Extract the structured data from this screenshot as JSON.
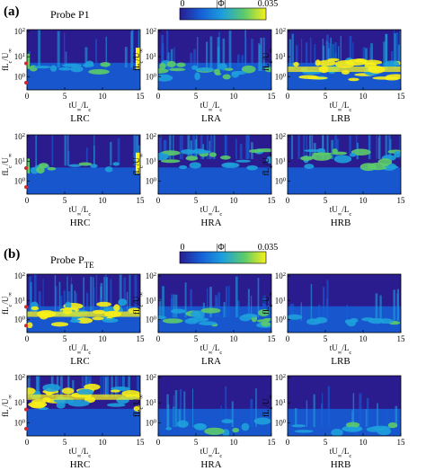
{
  "sections": [
    {
      "panel_label": "(a)",
      "probe_label": "Probe P1",
      "colorbar": {
        "min_label": "0",
        "title": "|Φ|",
        "max_label": "0.035"
      },
      "panels": [
        {
          "name": "LRC",
          "intensity": "low",
          "band_center": 0.4,
          "band_width": 0.18,
          "ends_bright": true,
          "marker": true
        },
        {
          "name": "LRA",
          "intensity": "med",
          "band_center": 0.3,
          "band_width": 0.25,
          "ends_bright": false,
          "marker": false
        },
        {
          "name": "LRB",
          "intensity": "high",
          "band_center": 0.35,
          "band_width": 0.35,
          "ends_bright": false,
          "marker": false
        },
        {
          "name": "HRC",
          "intensity": "low",
          "band_center": 0.6,
          "band_width": 0.2,
          "ends_bright": true,
          "marker": true
        },
        {
          "name": "HRA",
          "intensity": "med",
          "band_center": 0.8,
          "band_width": 0.3,
          "ends_bright": false,
          "marker": false
        },
        {
          "name": "HRB",
          "intensity": "med",
          "band_center": 0.8,
          "band_width": 0.3,
          "ends_bright": false,
          "marker": false
        }
      ]
    },
    {
      "panel_label": "(b)",
      "probe_label": "Probe P",
      "probe_subscript": "TE",
      "colorbar": {
        "min_label": "0",
        "title": "|Φ|",
        "max_label": "0.035"
      },
      "panels": [
        {
          "name": "LRC",
          "intensity": "high",
          "band_center": 0.3,
          "band_width": 0.45,
          "ends_bright": false,
          "marker": true
        },
        {
          "name": "LRA",
          "intensity": "med",
          "band_center": 0.2,
          "band_width": 0.3,
          "ends_bright": false,
          "marker": false
        },
        {
          "name": "LRB",
          "intensity": "low",
          "band_center": 0.1,
          "band_width": 0.2,
          "ends_bright": false,
          "marker": false
        },
        {
          "name": "HRC",
          "intensity": "high",
          "band_center": 0.9,
          "band_width": 0.4,
          "ends_bright": false,
          "marker": true
        },
        {
          "name": "HRA",
          "intensity": "low",
          "band_center": 0.0,
          "band_width": 0.2,
          "ends_bright": false,
          "marker": false
        },
        {
          "name": "HRB",
          "intensity": "low",
          "band_center": 0.0,
          "band_width": 0.2,
          "ends_bright": false,
          "marker": false
        }
      ]
    }
  ],
  "axes": {
    "ylabel": "fL",
    "ylabel_sub1": "c",
    "ylabel_mid": "/U",
    "ylabel_sub2": "∞",
    "xlabel": "tU",
    "xlabel_sub1": "∞",
    "xlabel_mid": "/L",
    "xlabel_sub2": "c",
    "xticks": [
      "0",
      "5",
      "10",
      "15"
    ],
    "yticks": [
      "10",
      "10",
      "10"
    ],
    "ytick_exps": [
      "0",
      "1",
      "2"
    ]
  },
  "chart_data": {
    "type": "heatmap",
    "description_of_axes": "wavelet scalogram",
    "x_range": [
      0,
      15
    ],
    "y_scale": "log",
    "y_range": [
      0.3,
      100
    ],
    "color_range": [
      0,
      0.035
    ],
    "colormap": [
      "#2a1c8f",
      "#1560d8",
      "#1ea0dc",
      "#5ccb6a",
      "#f8f018"
    ]
  }
}
